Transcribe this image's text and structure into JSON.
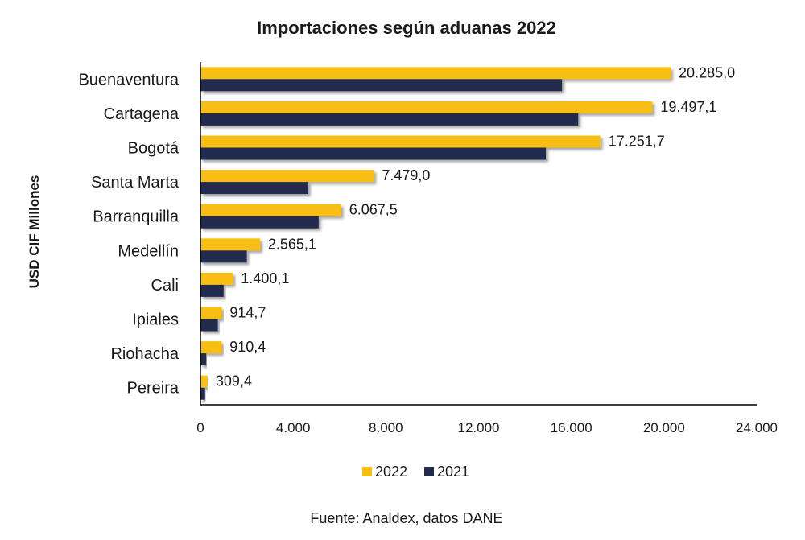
{
  "chart_data": {
    "type": "bar",
    "orientation": "horizontal",
    "title": "Importaciones según aduanas 2022",
    "ylabel": "USD CIF Millones",
    "categories": [
      "Buenaventura",
      "Cartagena",
      "Bogotá",
      "Santa Marta",
      "Barranquilla",
      "Medellín",
      "Cali",
      "Ipiales",
      "Riohacha",
      "Pereira"
    ],
    "series": [
      {
        "name": "2022",
        "color": "#F9BE12",
        "values": [
          20285.0,
          19497.1,
          17251.7,
          7479.0,
          6067.5,
          2565.1,
          1400.1,
          914.7,
          910.4,
          309.4
        ],
        "labels": [
          "20.285,0",
          "19.497,1",
          "17.251,7",
          "7.479,0",
          "6.067,5",
          "2.565,1",
          "1.400,1",
          "914,7",
          "910,4",
          "309,4"
        ]
      },
      {
        "name": "2021",
        "color": "#222B4D",
        "values": [
          15600,
          16300,
          14900,
          4650,
          5100,
          2000,
          1000,
          750,
          250,
          200
        ]
      }
    ],
    "xlim": [
      0,
      24000
    ],
    "xticks": [
      0,
      4000,
      8000,
      12000,
      16000,
      20000,
      24000
    ],
    "xtick_labels": [
      "0",
      "4.000",
      "8.000",
      "12.000",
      "16.000",
      "20.000",
      "24.000"
    ],
    "grid": false,
    "legend_position": "bottom"
  },
  "source": "Fuente: Analdex, datos DANE"
}
